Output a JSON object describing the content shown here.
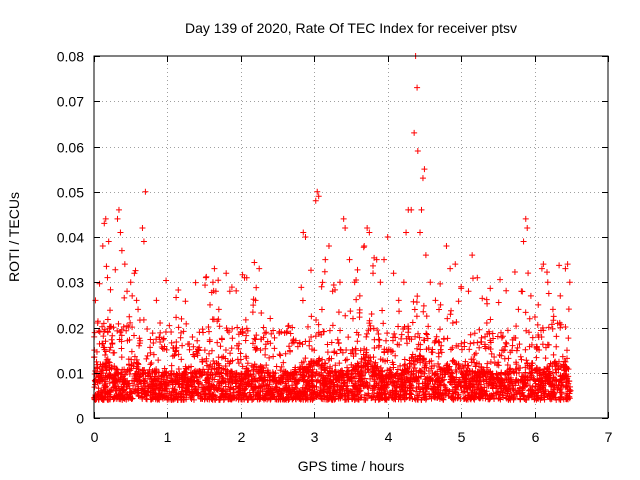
{
  "chart_data": {
    "type": "scatter",
    "title": "Day 139 of 2020, Rate Of TEC Index for receiver ptsv",
    "xlabel": "GPS time / hours",
    "ylabel": "ROTI / TECUs",
    "xlim": [
      0,
      7
    ],
    "ylim": [
      0,
      0.08
    ],
    "x_ticks": [
      0,
      1,
      2,
      3,
      4,
      5,
      6,
      7
    ],
    "x_tick_labels": [
      "0",
      "1",
      "2",
      "3",
      "4",
      "5",
      "6",
      "7"
    ],
    "y_ticks": [
      0,
      0.01,
      0.02,
      0.03,
      0.04,
      0.05,
      0.06,
      0.07,
      0.08
    ],
    "y_tick_labels": [
      "0",
      "0.01",
      "0.02",
      "0.03",
      "0.04",
      "0.05",
      "0.06",
      "0.07",
      "0.08"
    ],
    "grid": true,
    "marker": "+",
    "marker_color": "#ff0000",
    "series": [
      {
        "name": "ROTI",
        "x_range": [
          0,
          6.5
        ],
        "note": "dense cloud of points, mostly between 0.003 and 0.02 TECU",
        "points": [
          [
            0.02,
            0.026
          ],
          [
            0.05,
            0.021
          ],
          [
            0.08,
            0.019
          ],
          [
            0.12,
            0.038
          ],
          [
            0.14,
            0.043
          ],
          [
            0.16,
            0.044
          ],
          [
            0.2,
            0.039
          ],
          [
            0.32,
            0.044
          ],
          [
            0.34,
            0.046
          ],
          [
            0.36,
            0.041
          ],
          [
            0.38,
            0.037
          ],
          [
            0.42,
            0.034
          ],
          [
            0.45,
            0.028
          ],
          [
            0.5,
            0.03
          ],
          [
            0.52,
            0.027
          ],
          [
            0.55,
            0.032
          ],
          [
            0.58,
            0.026
          ],
          [
            0.6,
            0.024
          ],
          [
            0.66,
            0.042
          ],
          [
            0.68,
            0.039
          ],
          [
            0.7,
            0.05
          ],
          [
            0.85,
            0.026
          ],
          [
            0.9,
            0.021
          ],
          [
            0.98,
            0.019
          ],
          [
            1.05,
            0.019
          ],
          [
            1.2,
            0.016
          ],
          [
            1.35,
            0.014
          ],
          [
            1.58,
            0.025
          ],
          [
            1.62,
            0.03
          ],
          [
            1.64,
            0.033
          ],
          [
            1.66,
            0.028
          ],
          [
            1.7,
            0.024
          ],
          [
            1.8,
            0.032
          ],
          [
            1.85,
            0.028
          ],
          [
            1.95,
            0.02
          ],
          [
            2.05,
            0.031
          ],
          [
            2.08,
            0.031
          ],
          [
            2.2,
            0.026
          ],
          [
            2.25,
            0.033
          ],
          [
            2.4,
            0.022
          ],
          [
            2.55,
            0.019
          ],
          [
            2.7,
            0.02
          ],
          [
            2.85,
            0.041
          ],
          [
            2.88,
            0.04
          ],
          [
            3.02,
            0.048
          ],
          [
            3.04,
            0.05
          ],
          [
            3.06,
            0.049
          ],
          [
            3.1,
            0.029
          ],
          [
            3.15,
            0.035
          ],
          [
            3.2,
            0.038
          ],
          [
            3.25,
            0.028
          ],
          [
            3.35,
            0.03
          ],
          [
            3.4,
            0.044
          ],
          [
            3.42,
            0.042
          ],
          [
            3.48,
            0.035
          ],
          [
            3.55,
            0.03
          ],
          [
            3.62,
            0.027
          ],
          [
            3.68,
            0.038
          ],
          [
            3.72,
            0.042
          ],
          [
            3.75,
            0.041
          ],
          [
            3.8,
            0.032
          ],
          [
            3.85,
            0.035
          ],
          [
            3.9,
            0.03
          ],
          [
            3.95,
            0.035
          ],
          [
            4.0,
            0.04
          ],
          [
            4.08,
            0.032
          ],
          [
            4.15,
            0.026
          ],
          [
            4.22,
            0.03
          ],
          [
            4.25,
            0.041
          ],
          [
            4.28,
            0.046
          ],
          [
            4.32,
            0.046
          ],
          [
            4.36,
            0.063
          ],
          [
            4.38,
            0.08
          ],
          [
            4.4,
            0.073
          ],
          [
            4.41,
            0.059
          ],
          [
            4.44,
            0.041
          ],
          [
            4.46,
            0.046
          ],
          [
            4.48,
            0.053
          ],
          [
            4.5,
            0.055
          ],
          [
            4.52,
            0.036
          ],
          [
            4.58,
            0.03
          ],
          [
            4.65,
            0.026
          ],
          [
            4.72,
            0.025
          ],
          [
            4.8,
            0.038
          ],
          [
            4.85,
            0.033
          ],
          [
            4.92,
            0.034
          ],
          [
            5.0,
            0.029
          ],
          [
            5.1,
            0.028
          ],
          [
            5.15,
            0.036
          ],
          [
            5.22,
            0.031
          ],
          [
            5.35,
            0.021
          ],
          [
            5.5,
            0.018
          ],
          [
            5.7,
            0.016
          ],
          [
            5.78,
            0.024
          ],
          [
            5.82,
            0.028
          ],
          [
            5.85,
            0.039
          ],
          [
            5.88,
            0.044
          ],
          [
            5.9,
            0.042
          ],
          [
            5.95,
            0.027
          ],
          [
            6.05,
            0.025
          ],
          [
            6.1,
            0.033
          ],
          [
            6.12,
            0.034
          ],
          [
            6.18,
            0.03
          ],
          [
            6.25,
            0.024
          ],
          [
            6.35,
            0.027
          ],
          [
            6.42,
            0.033
          ],
          [
            6.45,
            0.034
          ],
          [
            6.48,
            0.03
          ]
        ]
      }
    ]
  }
}
